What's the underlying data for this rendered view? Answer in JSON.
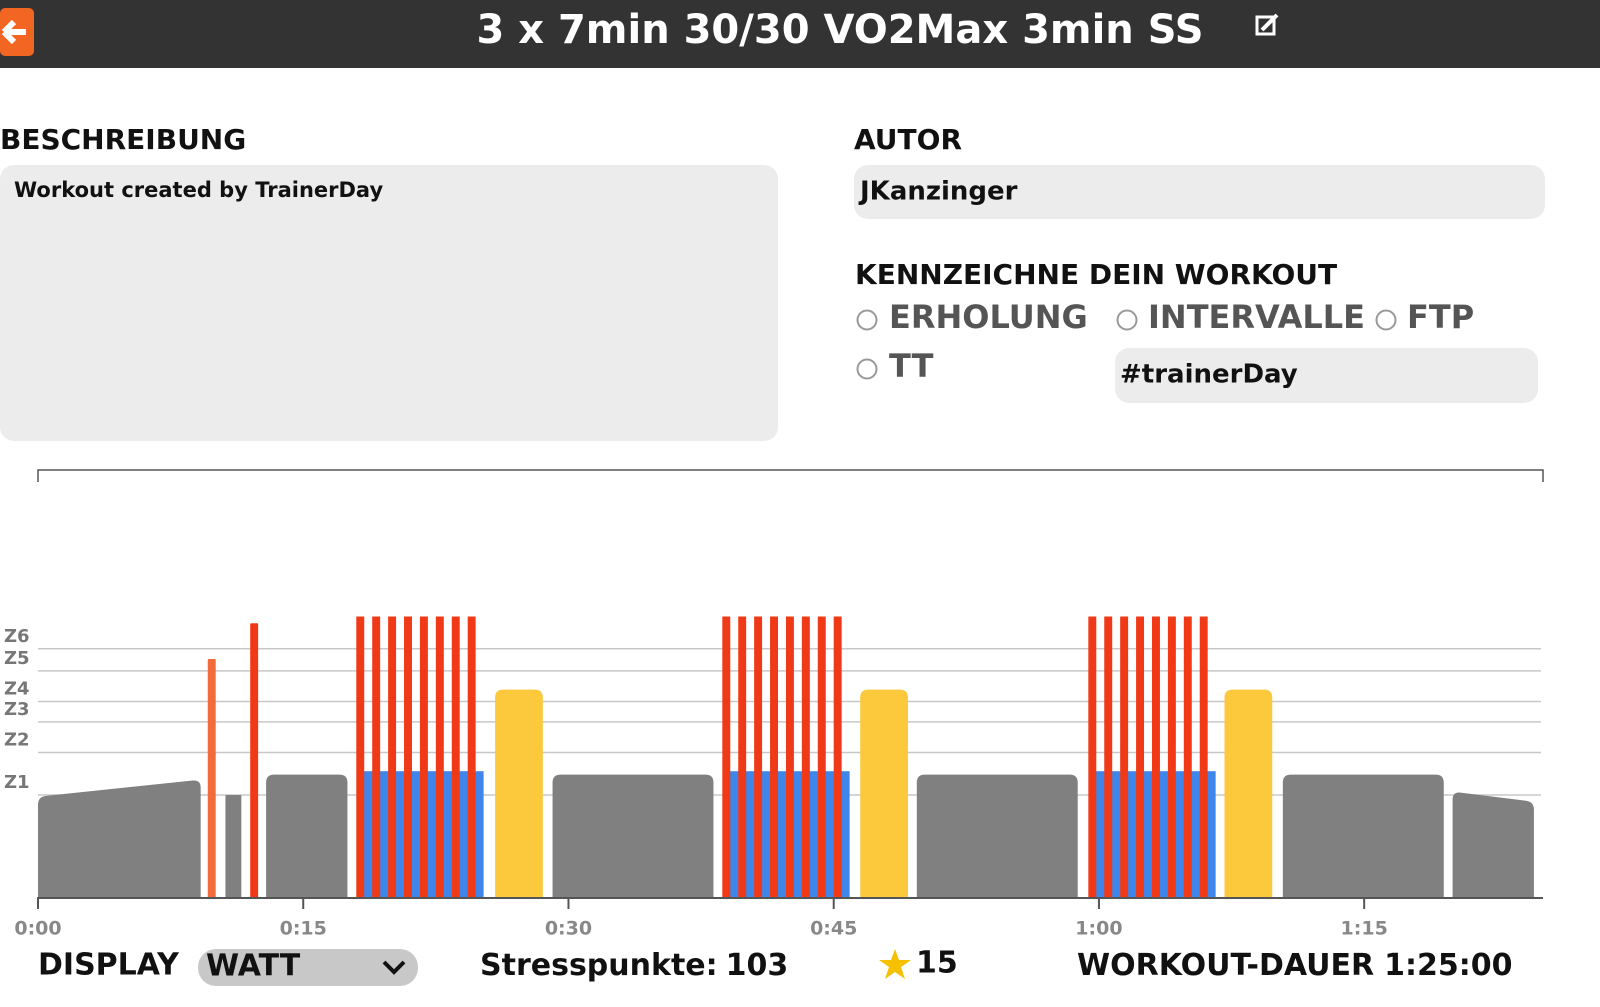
{
  "header": {
    "title": "3 x 7min 30/30 VO2Max  3min SS"
  },
  "description": {
    "heading": "BESCHREIBUNG",
    "text": "Workout created by TrainerDay"
  },
  "author": {
    "heading": "AUTOR",
    "name": "JKanzinger"
  },
  "tags": {
    "heading": "KENNZEICHNE DEIN WORKOUT",
    "options": [
      "ERHOLUNG",
      "INTERVALLE",
      "FTP",
      "TT"
    ],
    "hashtag": "#trainerDay"
  },
  "chart_data": {
    "type": "workout",
    "xlim": [
      0,
      85
    ],
    "xticks": [
      {
        "value": 0,
        "label": "0:00"
      },
      {
        "value": 15,
        "label": "0:15"
      },
      {
        "value": 30,
        "label": "0:30"
      },
      {
        "value": 45,
        "label": "0:45"
      },
      {
        "value": 60,
        "label": "1:00"
      },
      {
        "value": 75,
        "label": "1:15"
      }
    ],
    "ylim": [
      0,
      250
    ],
    "yticks": [
      {
        "value": 60,
        "label": "Z1"
      },
      {
        "value": 85,
        "label": "Z2"
      },
      {
        "value": 103,
        "label": "Z3"
      },
      {
        "value": 115,
        "label": "Z4"
      },
      {
        "value": 133,
        "label": "Z5"
      },
      {
        "value": 146,
        "label": "Z6"
      }
    ],
    "segments": [
      {
        "start": 0,
        "duration": 9.2,
        "power_start": 59,
        "power_end": 69,
        "color": "#808080"
      },
      {
        "start": 9.6,
        "duration": 0.45,
        "power_start": 140,
        "power_end": 140,
        "color": "#f26b3a"
      },
      {
        "start": 10.6,
        "duration": 0.9,
        "power_start": 60,
        "power_end": 60,
        "color": "#808080"
      },
      {
        "start": 12,
        "duration": 0.45,
        "power_start": 161,
        "power_end": 161,
        "color": "#f03a17"
      },
      {
        "start": 12.9,
        "duration": 4.6,
        "power_start": 72,
        "power_end": 72,
        "color": "#808080"
      },
      {
        "start": 25.85,
        "duration": 2.7,
        "power_start": 122,
        "power_end": 122,
        "color": "#fcc93c"
      },
      {
        "start": 29.1,
        "duration": 9.1,
        "power_start": 72,
        "power_end": 72,
        "color": "#808080"
      },
      {
        "start": 46.5,
        "duration": 2.7,
        "power_start": 122,
        "power_end": 122,
        "color": "#fcc93c"
      },
      {
        "start": 49.7,
        "duration": 9.1,
        "power_start": 72,
        "power_end": 72,
        "color": "#808080"
      },
      {
        "start": 67.1,
        "duration": 2.7,
        "power_start": 122,
        "power_end": 122,
        "color": "#fcc93c"
      },
      {
        "start": 70.4,
        "duration": 9.1,
        "power_start": 72,
        "power_end": 72,
        "color": "#808080"
      },
      {
        "start": 80,
        "duration": 4.6,
        "power_start": 62,
        "power_end": 56,
        "color": "#808080"
      }
    ],
    "intervals": [
      {
        "start": 18,
        "reps": 8,
        "on_duration": 0.45,
        "off_duration": 0.45,
        "on_power": 165,
        "off_power": 74,
        "on_color": "#f03a17",
        "off_color": "#3f86ea"
      },
      {
        "start": 38.7,
        "reps": 8,
        "on_duration": 0.45,
        "off_duration": 0.45,
        "on_power": 165,
        "off_power": 74,
        "on_color": "#f03a17",
        "off_color": "#3f86ea"
      },
      {
        "start": 59.4,
        "reps": 8,
        "on_duration": 0.45,
        "off_duration": 0.45,
        "on_power": 165,
        "off_power": 74,
        "on_color": "#f03a17",
        "off_color": "#3f86ea"
      }
    ],
    "grid": true
  },
  "footer": {
    "display_label": "DISPLAY",
    "display_value": "WATT",
    "stress_label": "Stresspunkte:",
    "stress_value": 103,
    "rating": 15,
    "duration_label": "WORKOUT-DAUER",
    "duration_value": "1:25:00"
  }
}
